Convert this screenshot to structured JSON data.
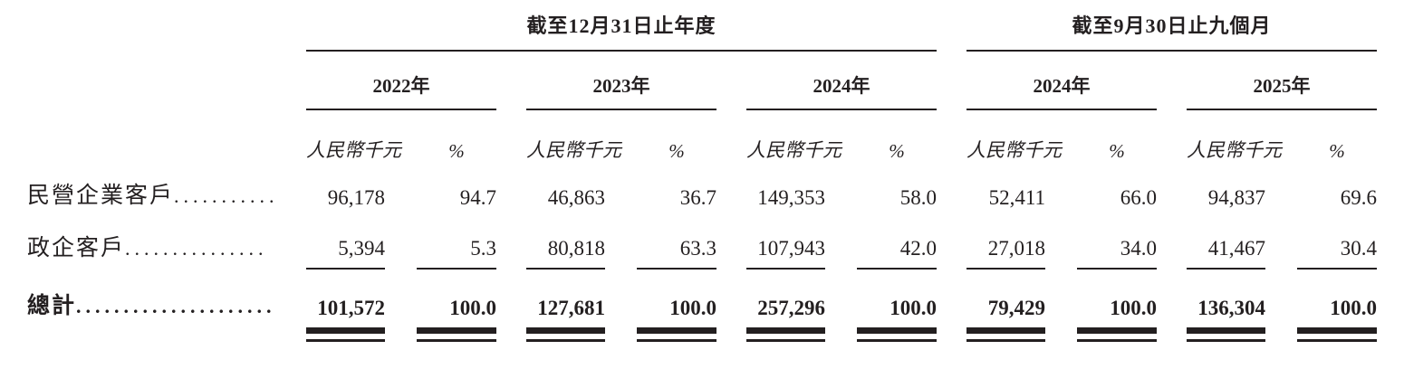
{
  "table": {
    "col_groups": [
      {
        "title": "截至12月31日止年度",
        "years": [
          "2022年",
          "2023年",
          "2024年"
        ]
      },
      {
        "title": "截至9月30日止九個月",
        "years": [
          "2024年",
          "2025年"
        ]
      }
    ],
    "unit_label": "人民幣千元",
    "pct_label": "%",
    "rows": [
      {
        "label": "民營企業客戶",
        "leader": "...........",
        "values": [
          [
            "96,178",
            "94.7"
          ],
          [
            "46,863",
            "36.7"
          ],
          [
            "149,353",
            "58.0"
          ],
          [
            "52,411",
            "66.0"
          ],
          [
            "94,837",
            "69.6"
          ]
        ]
      },
      {
        "label": "政企客戶",
        "leader": "...............",
        "values": [
          [
            "5,394",
            "5.3"
          ],
          [
            "80,818",
            "63.3"
          ],
          [
            "107,943",
            "42.0"
          ],
          [
            "27,018",
            "34.0"
          ],
          [
            "41,467",
            "30.4"
          ]
        ]
      }
    ],
    "total": {
      "label": "總計",
      "leader": ".....................",
      "values": [
        [
          "101,572",
          "100.0"
        ],
        [
          "127,681",
          "100.0"
        ],
        [
          "257,296",
          "100.0"
        ],
        [
          "79,429",
          "100.0"
        ],
        [
          "136,304",
          "100.0"
        ]
      ]
    },
    "colors": {
      "text": "#231f20",
      "rule": "#231f20",
      "background": "#ffffff"
    }
  }
}
